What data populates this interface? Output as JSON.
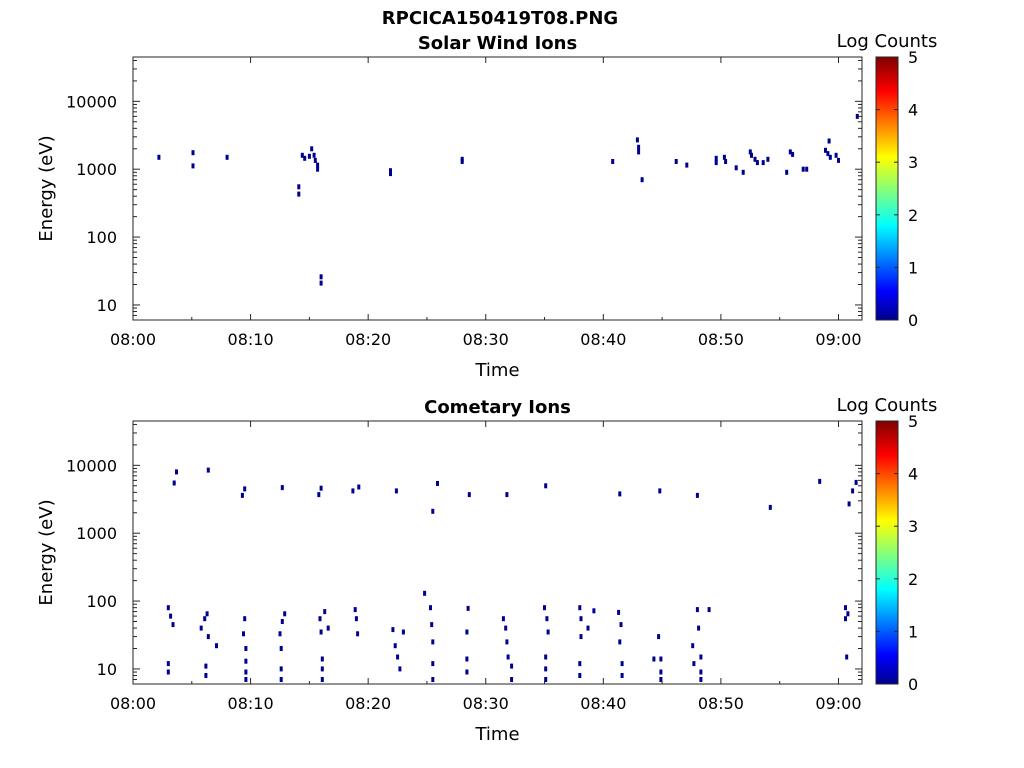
{
  "figure_title": "RPCICA150419T08.PNG",
  "chart_data": [
    {
      "type": "heatmap",
      "title": "Solar Wind Ions",
      "xlabel": "Time",
      "ylabel": "Energy (eV)",
      "x_ticks": [
        "08:00",
        "08:10",
        "08:20",
        "08:30",
        "08:40",
        "08:50",
        "09:00"
      ],
      "x_range_min": [
        0,
        62
      ],
      "y_scale": "log",
      "y_ticks": [
        "10",
        "100",
        "1000",
        "10000"
      ],
      "y_range_eV": [
        6,
        45000
      ],
      "colorbar": {
        "label": "Log Counts",
        "ticks": [
          "0",
          "1",
          "2",
          "3",
          "4",
          "5"
        ],
        "range": [
          0,
          5
        ],
        "colormap": "jet"
      },
      "cells": [
        [
          2.2,
          1500,
          0
        ],
        [
          5.1,
          1750,
          0
        ],
        [
          5.1,
          1120,
          0
        ],
        [
          8.0,
          1500,
          0
        ],
        [
          14.1,
          550,
          0
        ],
        [
          14.1,
          430,
          0
        ],
        [
          14.4,
          1600,
          0
        ],
        [
          14.6,
          1450,
          0
        ],
        [
          15.0,
          1550,
          0
        ],
        [
          15.2,
          2000,
          0
        ],
        [
          15.4,
          1600,
          0
        ],
        [
          15.5,
          1350,
          0
        ],
        [
          15.7,
          1150,
          0
        ],
        [
          15.7,
          1000,
          0
        ],
        [
          16.0,
          26,
          0
        ],
        [
          16.0,
          21,
          0
        ],
        [
          21.9,
          950,
          0
        ],
        [
          21.9,
          860,
          0
        ],
        [
          28.0,
          1400,
          0
        ],
        [
          28.0,
          1300,
          0
        ],
        [
          40.8,
          1300,
          0
        ],
        [
          42.9,
          2700,
          0
        ],
        [
          43.0,
          2100,
          0
        ],
        [
          43.0,
          1800,
          0
        ],
        [
          43.3,
          700,
          0
        ],
        [
          46.2,
          1300,
          0
        ],
        [
          47.1,
          1150,
          0
        ],
        [
          49.6,
          1450,
          0
        ],
        [
          49.6,
          1250,
          0
        ],
        [
          50.3,
          1500,
          0
        ],
        [
          50.4,
          1300,
          0
        ],
        [
          51.3,
          1050,
          0
        ],
        [
          51.9,
          900,
          0
        ],
        [
          52.5,
          1800,
          0
        ],
        [
          52.6,
          1600,
          0
        ],
        [
          52.9,
          1400,
          0
        ],
        [
          53.1,
          1250,
          0
        ],
        [
          53.6,
          1250,
          0
        ],
        [
          54.0,
          1400,
          0
        ],
        [
          55.6,
          900,
          0
        ],
        [
          55.9,
          1800,
          0
        ],
        [
          56.1,
          1650,
          0
        ],
        [
          57.0,
          1000,
          0
        ],
        [
          57.3,
          1000,
          0
        ],
        [
          58.9,
          1900,
          0
        ],
        [
          59.1,
          1700,
          0
        ],
        [
          59.2,
          2600,
          0
        ],
        [
          59.3,
          1500,
          0
        ],
        [
          59.8,
          1600,
          0
        ],
        [
          60.0,
          1350,
          0
        ],
        [
          61.6,
          6000,
          0
        ]
      ]
    },
    {
      "type": "heatmap",
      "title": "Cometary Ions",
      "xlabel": "Time",
      "ylabel": "Energy (eV)",
      "x_ticks": [
        "08:00",
        "08:10",
        "08:20",
        "08:30",
        "08:40",
        "08:50",
        "09:00"
      ],
      "x_range_min": [
        0,
        62
      ],
      "y_scale": "log",
      "y_ticks": [
        "10",
        "100",
        "1000",
        "10000"
      ],
      "y_range_eV": [
        6,
        45000
      ],
      "colorbar": {
        "label": "Log Counts",
        "ticks": [
          "0",
          "1",
          "2",
          "3",
          "4",
          "5"
        ],
        "range": [
          0,
          5
        ],
        "colormap": "jet"
      },
      "cells": [
        [
          3.5,
          5500,
          0
        ],
        [
          3.7,
          8000,
          0
        ],
        [
          6.4,
          8500,
          0
        ],
        [
          9.3,
          3600,
          0
        ],
        [
          9.5,
          4500,
          0
        ],
        [
          12.7,
          4700,
          0
        ],
        [
          15.8,
          3700,
          0
        ],
        [
          16.0,
          4600,
          0
        ],
        [
          18.7,
          4200,
          0
        ],
        [
          19.2,
          4800,
          0
        ],
        [
          22.4,
          4200,
          0
        ],
        [
          25.5,
          2100,
          0
        ],
        [
          25.9,
          5400,
          0
        ],
        [
          28.6,
          3700,
          0
        ],
        [
          31.8,
          3700,
          0
        ],
        [
          35.1,
          5000,
          0
        ],
        [
          41.4,
          3800,
          0
        ],
        [
          44.8,
          4200,
          0
        ],
        [
          48.0,
          3600,
          0
        ],
        [
          54.2,
          2400,
          0
        ],
        [
          58.4,
          5800,
          0
        ],
        [
          60.9,
          2700,
          0
        ],
        [
          61.2,
          4200,
          0
        ],
        [
          61.5,
          5600,
          0
        ],
        [
          3.0,
          12,
          0
        ],
        [
          3.0,
          9,
          0
        ],
        [
          3.0,
          80,
          0
        ],
        [
          3.2,
          60,
          0
        ],
        [
          3.4,
          45,
          0
        ],
        [
          5.8,
          40,
          0
        ],
        [
          6.1,
          55,
          0
        ],
        [
          6.3,
          65,
          0
        ],
        [
          6.4,
          30,
          0
        ],
        [
          6.2,
          11,
          0
        ],
        [
          6.2,
          8,
          0
        ],
        [
          7.1,
          22,
          0
        ],
        [
          9.4,
          33,
          0
        ],
        [
          9.5,
          55,
          0
        ],
        [
          9.6,
          20,
          0
        ],
        [
          9.6,
          13,
          0
        ],
        [
          9.6,
          9,
          0
        ],
        [
          9.6,
          7,
          0
        ],
        [
          12.5,
          33,
          0
        ],
        [
          12.7,
          50,
          0
        ],
        [
          12.9,
          65,
          0
        ],
        [
          12.6,
          20,
          0
        ],
        [
          12.6,
          10,
          0
        ],
        [
          12.6,
          7,
          0
        ],
        [
          15.9,
          55,
          0
        ],
        [
          16.0,
          35,
          0
        ],
        [
          16.1,
          14,
          0
        ],
        [
          16.1,
          10,
          0
        ],
        [
          16.1,
          7,
          0
        ],
        [
          16.3,
          70,
          0
        ],
        [
          16.6,
          40,
          0
        ],
        [
          18.9,
          75,
          0
        ],
        [
          19.0,
          55,
          0
        ],
        [
          19.1,
          33,
          0
        ],
        [
          22.1,
          38,
          0
        ],
        [
          22.3,
          22,
          0
        ],
        [
          22.5,
          15,
          0
        ],
        [
          22.7,
          10,
          0
        ],
        [
          23.0,
          35,
          0
        ],
        [
          24.8,
          130,
          0
        ],
        [
          25.3,
          80,
          0
        ],
        [
          25.4,
          45,
          0
        ],
        [
          25.5,
          25,
          0
        ],
        [
          25.5,
          12,
          0
        ],
        [
          25.5,
          7,
          0
        ],
        [
          28.5,
          78,
          0
        ],
        [
          28.4,
          35,
          0
        ],
        [
          28.4,
          14,
          0
        ],
        [
          28.4,
          9,
          0
        ],
        [
          31.5,
          55,
          0
        ],
        [
          31.7,
          40,
          0
        ],
        [
          31.8,
          25,
          0
        ],
        [
          31.9,
          15,
          0
        ],
        [
          32.2,
          11,
          0
        ],
        [
          32.2,
          7,
          0
        ],
        [
          35.0,
          80,
          0
        ],
        [
          35.2,
          55,
          0
        ],
        [
          35.3,
          35,
          0
        ],
        [
          35.1,
          15,
          0
        ],
        [
          35.1,
          10,
          0
        ],
        [
          35.1,
          7,
          0
        ],
        [
          38.0,
          80,
          0
        ],
        [
          38.1,
          55,
          0
        ],
        [
          38.1,
          30,
          0
        ],
        [
          38.0,
          12,
          0
        ],
        [
          38.0,
          8,
          0
        ],
        [
          38.7,
          40,
          0
        ],
        [
          39.2,
          72,
          0
        ],
        [
          41.3,
          68,
          0
        ],
        [
          41.5,
          45,
          0
        ],
        [
          41.4,
          25,
          0
        ],
        [
          41.6,
          12,
          0
        ],
        [
          41.6,
          8,
          0
        ],
        [
          44.3,
          14,
          0
        ],
        [
          44.7,
          30,
          0
        ],
        [
          44.9,
          14,
          0
        ],
        [
          44.9,
          9,
          0
        ],
        [
          44.9,
          7,
          0
        ],
        [
          47.6,
          22,
          0
        ],
        [
          47.7,
          12,
          0
        ],
        [
          48.1,
          40,
          0
        ],
        [
          48.3,
          15,
          0
        ],
        [
          48.3,
          9,
          0
        ],
        [
          48.3,
          7,
          0
        ],
        [
          48.0,
          75,
          0
        ],
        [
          49.0,
          75,
          0
        ],
        [
          60.6,
          80,
          0
        ],
        [
          60.8,
          65,
          0
        ],
        [
          60.6,
          55,
          0
        ],
        [
          60.7,
          15,
          0
        ]
      ]
    }
  ]
}
